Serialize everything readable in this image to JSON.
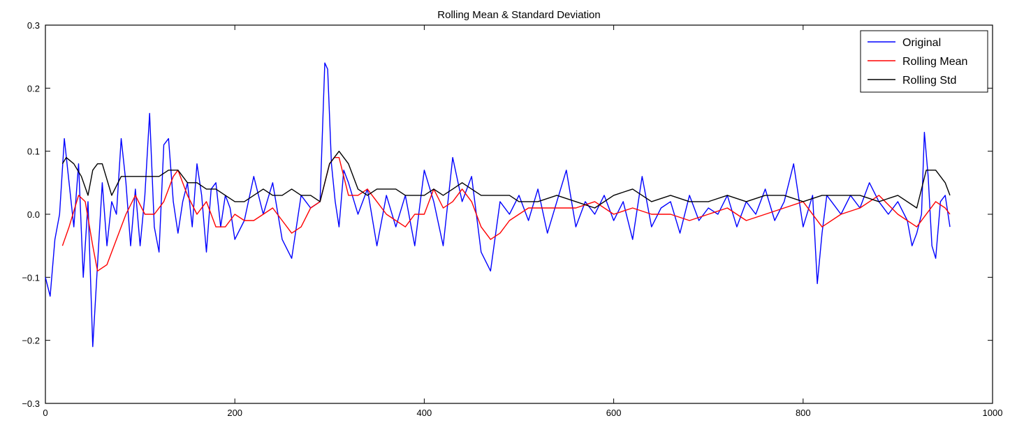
{
  "chart_data": {
    "type": "line",
    "title": "Rolling Mean & Standard Deviation",
    "xlabel": "",
    "ylabel": "",
    "xlim": [
      0,
      1000
    ],
    "ylim": [
      -0.3,
      0.3
    ],
    "x_ticks": [
      0,
      200,
      400,
      600,
      800,
      1000
    ],
    "x_tick_labels": [
      "0",
      "200",
      "400",
      "600",
      "800",
      "1000"
    ],
    "y_ticks": [
      0.3,
      0.2,
      0.1,
      0.0,
      -0.1,
      -0.2,
      -0.3
    ],
    "y_tick_labels": [
      "0.3",
      "0.2",
      "0.1",
      "0.0",
      "−0.1",
      "−0.2",
      "−0.3"
    ],
    "grid": false,
    "legend_position": "top-right",
    "series": [
      {
        "name": "Original",
        "color": "#0000ff",
        "x": [
          0,
          5,
          10,
          15,
          20,
          25,
          30,
          35,
          40,
          45,
          50,
          55,
          60,
          65,
          70,
          75,
          80,
          85,
          90,
          95,
          100,
          105,
          110,
          115,
          120,
          125,
          130,
          135,
          140,
          145,
          150,
          155,
          160,
          165,
          170,
          175,
          180,
          185,
          190,
          195,
          200,
          210,
          220,
          230,
          240,
          250,
          260,
          270,
          280,
          290,
          295,
          298,
          302,
          306,
          310,
          315,
          320,
          330,
          340,
          350,
          360,
          370,
          380,
          390,
          400,
          410,
          420,
          430,
          440,
          450,
          460,
          470,
          480,
          490,
          500,
          510,
          520,
          530,
          540,
          550,
          560,
          570,
          580,
          590,
          600,
          610,
          620,
          630,
          640,
          650,
          660,
          670,
          680,
          690,
          700,
          710,
          720,
          730,
          740,
          750,
          760,
          770,
          780,
          790,
          800,
          810,
          815,
          820,
          825,
          830,
          840,
          850,
          860,
          870,
          880,
          890,
          900,
          910,
          915,
          920,
          925,
          928,
          932,
          936,
          940,
          945,
          950,
          955
        ],
        "y": [
          -0.1,
          -0.13,
          -0.04,
          0.0,
          0.12,
          0.05,
          -0.02,
          0.08,
          -0.1,
          0.02,
          -0.21,
          -0.08,
          0.05,
          -0.05,
          0.02,
          0.0,
          0.12,
          0.05,
          -0.05,
          0.04,
          -0.05,
          0.03,
          0.16,
          -0.02,
          -0.06,
          0.11,
          0.12,
          0.02,
          -0.03,
          0.02,
          0.05,
          -0.02,
          0.08,
          0.03,
          -0.06,
          0.04,
          0.05,
          -0.02,
          0.03,
          0.01,
          -0.04,
          -0.01,
          0.06,
          0.0,
          0.05,
          -0.04,
          -0.07,
          0.03,
          0.01,
          0.02,
          0.24,
          0.23,
          0.08,
          0.02,
          -0.02,
          0.07,
          0.05,
          0.0,
          0.04,
          -0.05,
          0.03,
          -0.02,
          0.03,
          -0.05,
          0.07,
          0.02,
          -0.05,
          0.09,
          0.02,
          0.06,
          -0.06,
          -0.09,
          0.02,
          0.0,
          0.03,
          -0.01,
          0.04,
          -0.03,
          0.02,
          0.07,
          -0.02,
          0.02,
          0.0,
          0.03,
          -0.01,
          0.02,
          -0.04,
          0.06,
          -0.02,
          0.01,
          0.02,
          -0.03,
          0.03,
          -0.01,
          0.01,
          0.0,
          0.03,
          -0.02,
          0.02,
          0.0,
          0.04,
          -0.01,
          0.02,
          0.08,
          -0.02,
          0.03,
          -0.11,
          -0.03,
          0.03,
          0.02,
          0.0,
          0.03,
          0.01,
          0.05,
          0.02,
          0.0,
          0.02,
          -0.01,
          -0.05,
          -0.03,
          0.0,
          0.13,
          0.06,
          -0.05,
          -0.07,
          0.02,
          0.03,
          -0.02
        ]
      },
      {
        "name": "Rolling Mean",
        "color": "#ff0000",
        "x": [
          18,
          25,
          35,
          42,
          50,
          55,
          65,
          75,
          85,
          95,
          105,
          115,
          125,
          135,
          140,
          150,
          160,
          170,
          180,
          190,
          200,
          210,
          220,
          230,
          240,
          250,
          260,
          270,
          280,
          290,
          300,
          305,
          310,
          320,
          330,
          340,
          350,
          360,
          370,
          380,
          390,
          400,
          410,
          420,
          430,
          440,
          450,
          460,
          470,
          480,
          490,
          500,
          510,
          520,
          540,
          560,
          580,
          600,
          620,
          640,
          660,
          680,
          700,
          720,
          740,
          760,
          780,
          800,
          820,
          840,
          860,
          880,
          900,
          920,
          940,
          950,
          955
        ],
        "y": [
          -0.05,
          -0.02,
          0.03,
          0.02,
          -0.05,
          -0.09,
          -0.08,
          -0.04,
          0.0,
          0.03,
          0.0,
          0.0,
          0.02,
          0.06,
          0.07,
          0.03,
          0.0,
          0.02,
          -0.02,
          -0.02,
          0.0,
          -0.01,
          -0.01,
          0.0,
          0.01,
          -0.01,
          -0.03,
          -0.02,
          0.01,
          0.02,
          0.08,
          0.09,
          0.09,
          0.03,
          0.03,
          0.04,
          0.02,
          0.0,
          -0.01,
          -0.02,
          0.0,
          0.0,
          0.04,
          0.01,
          0.02,
          0.04,
          0.02,
          -0.02,
          -0.04,
          -0.03,
          -0.01,
          0.0,
          0.01,
          0.01,
          0.01,
          0.01,
          0.02,
          0.0,
          0.01,
          0.0,
          0.0,
          -0.01,
          0.0,
          0.01,
          -0.01,
          0.0,
          0.01,
          0.02,
          -0.02,
          0.0,
          0.01,
          0.03,
          0.0,
          -0.02,
          0.02,
          0.01,
          0.0
        ]
      },
      {
        "name": "Rolling Std",
        "color": "#000000",
        "x": [
          18,
          22,
          30,
          38,
          45,
          50,
          55,
          60,
          70,
          80,
          90,
          100,
          110,
          120,
          130,
          140,
          150,
          160,
          170,
          180,
          190,
          200,
          210,
          220,
          230,
          240,
          250,
          260,
          270,
          280,
          290,
          300,
          305,
          310,
          320,
          330,
          340,
          350,
          360,
          370,
          380,
          390,
          400,
          410,
          420,
          430,
          440,
          450,
          460,
          470,
          480,
          490,
          500,
          520,
          540,
          560,
          580,
          600,
          620,
          640,
          660,
          680,
          700,
          720,
          740,
          760,
          780,
          800,
          820,
          840,
          860,
          880,
          900,
          920,
          930,
          940,
          950,
          955
        ],
        "y": [
          0.08,
          0.09,
          0.08,
          0.06,
          0.03,
          0.07,
          0.08,
          0.08,
          0.03,
          0.06,
          0.06,
          0.06,
          0.06,
          0.06,
          0.07,
          0.07,
          0.05,
          0.05,
          0.04,
          0.04,
          0.03,
          0.02,
          0.02,
          0.03,
          0.04,
          0.03,
          0.03,
          0.04,
          0.03,
          0.03,
          0.02,
          0.08,
          0.09,
          0.1,
          0.08,
          0.04,
          0.03,
          0.04,
          0.04,
          0.04,
          0.03,
          0.03,
          0.03,
          0.04,
          0.03,
          0.04,
          0.05,
          0.04,
          0.03,
          0.03,
          0.03,
          0.03,
          0.02,
          0.02,
          0.03,
          0.02,
          0.01,
          0.03,
          0.04,
          0.02,
          0.03,
          0.02,
          0.02,
          0.03,
          0.02,
          0.03,
          0.03,
          0.02,
          0.03,
          0.03,
          0.03,
          0.02,
          0.03,
          0.01,
          0.07,
          0.07,
          0.05,
          0.03
        ]
      }
    ]
  }
}
